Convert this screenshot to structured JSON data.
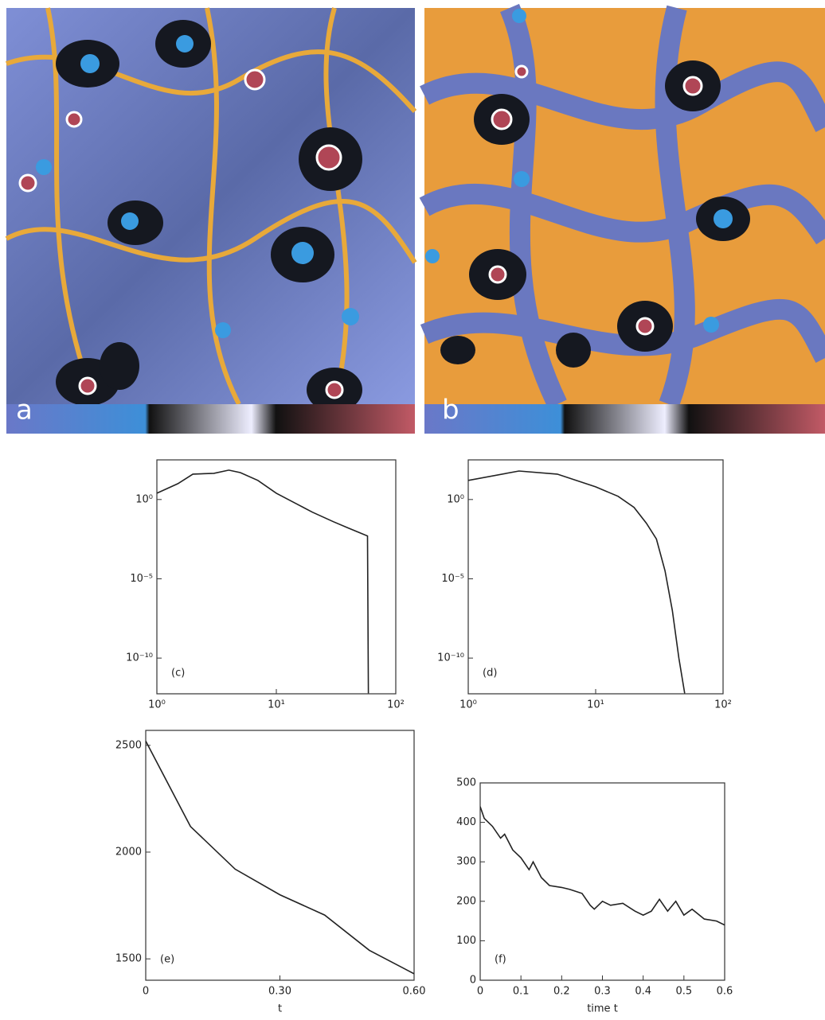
{
  "images": [
    {
      "label": "a"
    },
    {
      "label": "b"
    }
  ],
  "chart_data": [
    {
      "type": "line",
      "annotation": "(c)",
      "xlog": true,
      "ylog": true,
      "color": "#222222",
      "x": [
        1,
        1.5,
        2,
        3,
        4,
        5,
        7,
        10,
        15,
        20,
        30,
        40,
        50,
        58,
        59
      ],
      "values": [
        2.5,
        10,
        40,
        45,
        71,
        50,
        16,
        2.5,
        0.5,
        0.16,
        0.04,
        0.016,
        0.008,
        0.005,
        6e-13
      ],
      "xlim": [
        1,
        100
      ],
      "ylim": [
        5.6e-13,
        316
      ],
      "xticks": [
        {
          "value": 1,
          "label": "10⁰"
        },
        {
          "value": 10,
          "label": "10¹"
        },
        {
          "value": 100,
          "label": "10²"
        }
      ],
      "yticks": [
        {
          "value": 1,
          "label": "10⁰"
        },
        {
          "value": 1e-05,
          "label": "10⁻⁵"
        },
        {
          "value": 1e-10,
          "label": "10⁻¹⁰"
        }
      ]
    },
    {
      "type": "line",
      "annotation": "(d)",
      "xlog": true,
      "ylog": true,
      "color": "#222222",
      "x": [
        1,
        2.5,
        5,
        10,
        15,
        20,
        25,
        30,
        35,
        40,
        45,
        50
      ],
      "values": [
        16,
        63,
        40,
        6.3,
        1.6,
        0.32,
        0.032,
        0.0032,
        3.2e-05,
        1e-07,
        1e-10,
        6e-13
      ],
      "xlim": [
        1,
        100
      ],
      "ylim": [
        5.6e-13,
        316
      ],
      "xticks": [
        {
          "value": 1,
          "label": "10⁰"
        },
        {
          "value": 10,
          "label": "10¹"
        },
        {
          "value": 100,
          "label": "10²"
        }
      ],
      "yticks": [
        {
          "value": 1,
          "label": "10⁰"
        },
        {
          "value": 1e-05,
          "label": "10⁻⁵"
        },
        {
          "value": 1e-10,
          "label": "10⁻¹⁰"
        }
      ]
    },
    {
      "type": "line",
      "annotation": "(e)",
      "xlabel": "t",
      "xlog": false,
      "ylog": false,
      "color": "#222222",
      "x": [
        0,
        0.1,
        0.2,
        0.3,
        0.4,
        0.5,
        0.6
      ],
      "values": [
        2520,
        2120,
        1920,
        1800,
        1705,
        1540,
        1430
      ],
      "xlim": [
        0,
        0.6
      ],
      "ylim": [
        1400,
        2570
      ],
      "xticks": [
        0,
        {
          "value": 0.3,
          "label": "0.30"
        },
        {
          "value": 0.6,
          "label": "0.60"
        }
      ],
      "yticks": [
        1500,
        2000,
        2500
      ]
    },
    {
      "type": "line",
      "annotation": "(f)",
      "xlabel": "time t",
      "xlog": false,
      "ylog": false,
      "color": "#222222",
      "x": [
        0,
        0.01,
        0.03,
        0.05,
        0.06,
        0.08,
        0.1,
        0.12,
        0.13,
        0.15,
        0.17,
        0.2,
        0.22,
        0.25,
        0.27,
        0.28,
        0.3,
        0.32,
        0.35,
        0.38,
        0.4,
        0.42,
        0.44,
        0.46,
        0.48,
        0.5,
        0.52,
        0.55,
        0.58,
        0.6
      ],
      "values": [
        440,
        410,
        390,
        360,
        370,
        330,
        310,
        280,
        300,
        260,
        240,
        235,
        230,
        220,
        190,
        180,
        200,
        190,
        195,
        175,
        165,
        175,
        205,
        175,
        200,
        165,
        180,
        155,
        150,
        140
      ],
      "xlim": [
        0,
        0.6
      ],
      "ylim": [
        0,
        500
      ],
      "xticks": [
        0,
        0.1,
        0.2,
        0.3,
        0.4,
        0.5,
        0.6
      ],
      "yticks": [
        0,
        100,
        200,
        300,
        400,
        500
      ]
    }
  ]
}
